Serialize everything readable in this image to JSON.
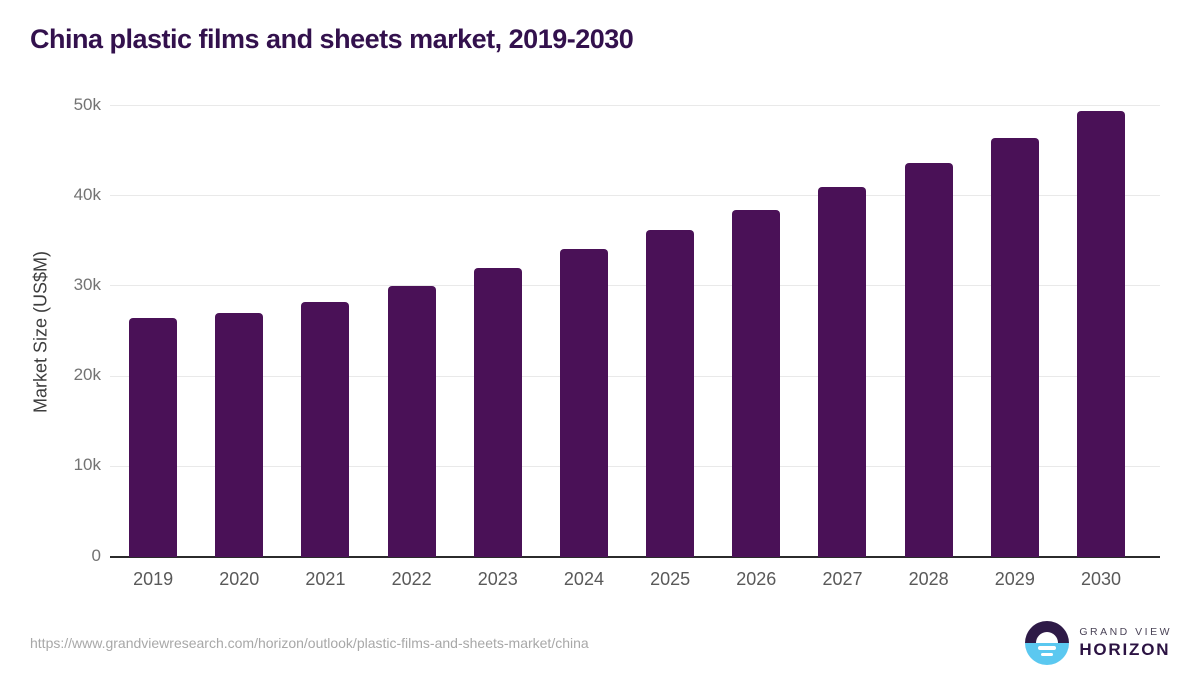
{
  "chart": {
    "title": "China plastic films and sheets market, 2019-2030"
  },
  "chart_data": {
    "type": "bar",
    "title": "China plastic films and sheets market, 2019-2030",
    "categories": [
      "2019",
      "2020",
      "2021",
      "2022",
      "2023",
      "2024",
      "2025",
      "2026",
      "2027",
      "2028",
      "2029",
      "2030"
    ],
    "values": [
      26500,
      27100,
      28300,
      30100,
      32000,
      34100,
      36200,
      38500,
      41000,
      43700,
      46400,
      49500
    ],
    "xlabel": "",
    "ylabel": "Market Size (US$M)",
    "ylim": [
      0,
      50000
    ],
    "yticks": [
      {
        "value": 0,
        "label": "0"
      },
      {
        "value": 10000,
        "label": "10k"
      },
      {
        "value": 20000,
        "label": "20k"
      },
      {
        "value": 30000,
        "label": "30k"
      },
      {
        "value": 40000,
        "label": "40k"
      },
      {
        "value": 50000,
        "label": "50k"
      }
    ],
    "grid": true,
    "legend": false,
    "bar_color": "#4a1157"
  },
  "footer": {
    "source_url": "https://www.grandviewresearch.com/horizon/outlook/plastic-films-and-sheets-market/china",
    "logo": {
      "line1": "GRAND VIEW",
      "line2": "HORIZON"
    }
  },
  "colors": {
    "title": "#33114d",
    "bar": "#4a1157",
    "gridline": "#e9e9e9",
    "axis_line": "#2b2b2b",
    "tick_text": "#737373",
    "x_label_text": "#595959",
    "y_axis_title_text": "#3d3d3d",
    "source_text": "#a8a8a8",
    "logo_purple": "#2e1a47",
    "logo_blue": "#5bc8f0"
  }
}
